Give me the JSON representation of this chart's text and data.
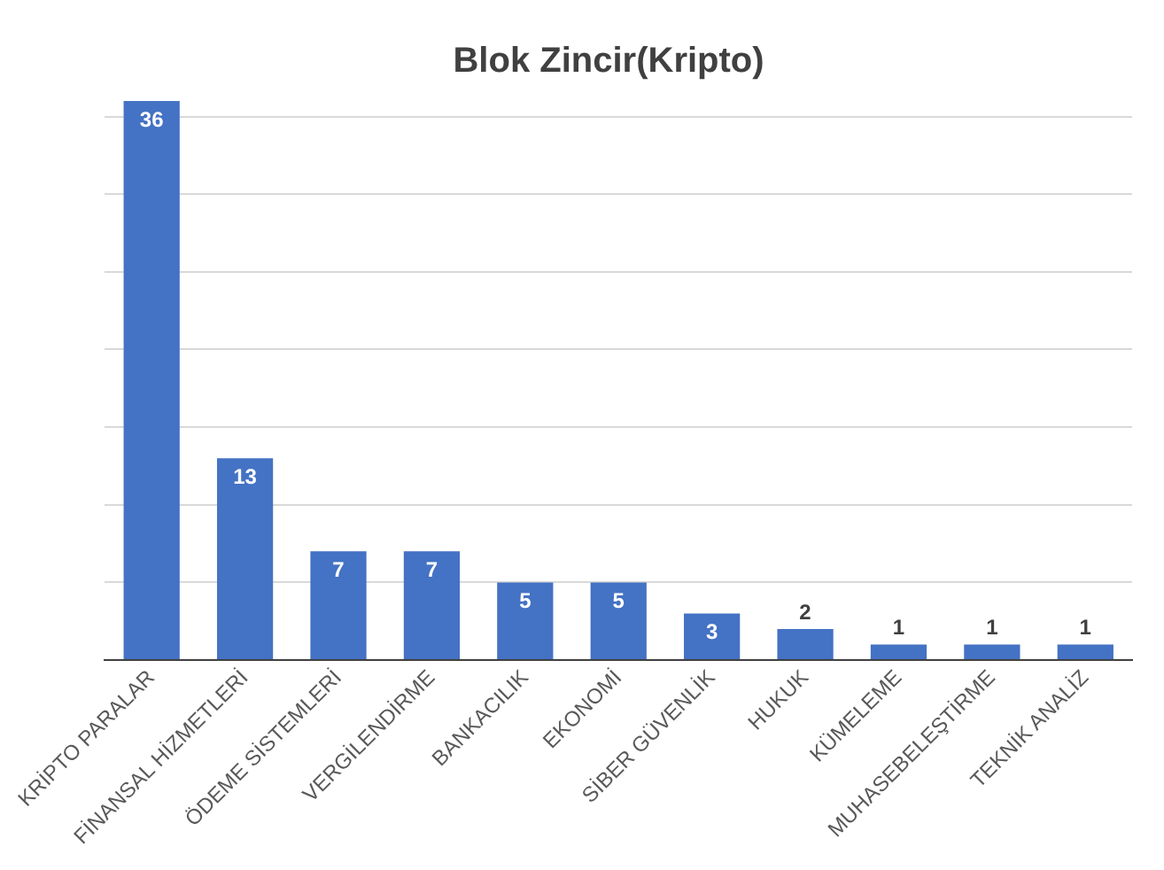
{
  "chart_data": {
    "type": "bar",
    "title": "Blok Zincir(Kripto)",
    "categories": [
      "KRİPTO PARALAR",
      "FİNANSAL HİZMETLERİ",
      "ÖDEME SİSTEMLERİ",
      "VERGİLENDİRME",
      "BANKACILIK",
      "EKONOMİ",
      "SİBER GÜVENLİK",
      "HUKUK",
      "KÜMELEME",
      "MUHASEBELEŞTİRME",
      "TEKNİK ANALİZ"
    ],
    "values": [
      36,
      13,
      7,
      7,
      5,
      5,
      3,
      2,
      1,
      1,
      1
    ],
    "color": "#4472c4",
    "ylim": [
      0,
      36
    ],
    "yticks": [
      {
        "value": 0,
        "label": null
      },
      {
        "value": 5,
        "label": null
      },
      {
        "value": 10,
        "label": null
      },
      {
        "value": 15,
        "label": null
      },
      {
        "value": 20,
        "label": null
      },
      {
        "value": 25,
        "label": null
      },
      {
        "value": 30,
        "label": null
      },
      {
        "value": 35,
        "label": null
      }
    ],
    "grid": "y",
    "tick_labels": "x",
    "data_labels": true,
    "legend": false
  }
}
